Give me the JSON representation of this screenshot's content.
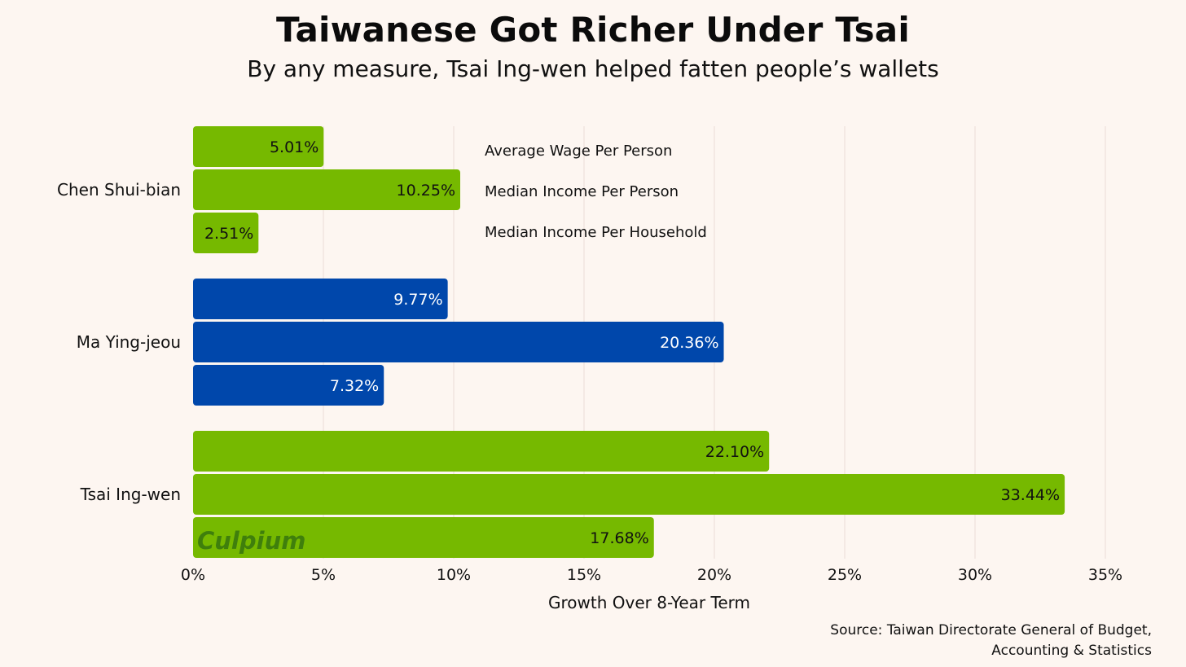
{
  "header": {
    "title": "Taiwanese Got Richer Under Tsai",
    "subtitle": "By any measure, Tsai Ing-wen helped fatten people’s wallets"
  },
  "source": {
    "line1": "Source: Taiwan Directorate General of Budget,",
    "line2": "Accounting & Statistics"
  },
  "watermark": "Culpium",
  "chart_data": {
    "type": "bar",
    "orientation": "horizontal",
    "title": "Taiwanese Got Richer Under Tsai",
    "subtitle": "By any measure, Tsai Ing-wen helped fatten people’s wallets",
    "xlabel": "Growth Over 8-Year Term",
    "ylabel": "",
    "xlim": [
      0,
      35
    ],
    "xticks": [
      0,
      5,
      10,
      15,
      20,
      25,
      30,
      35
    ],
    "xtick_labels": [
      "0%",
      "5%",
      "10%",
      "15%",
      "20%",
      "25%",
      "30%",
      "35%"
    ],
    "grid": true,
    "categories": [
      "Chen Shui-bian",
      "Ma Ying-jeou",
      "Tsai Ing-wen"
    ],
    "category_colors": [
      "#76b900",
      "#0047ab",
      "#76b900"
    ],
    "category_label_colors": [
      "#111111",
      "#ffffff",
      "#111111"
    ],
    "series": [
      {
        "name": "Average Wage Per Person",
        "values": [
          5.01,
          9.77,
          22.1
        ],
        "labels": [
          "5.01%",
          "9.77%",
          "22.10%"
        ]
      },
      {
        "name": "Median Income Per Person",
        "values": [
          10.25,
          20.36,
          33.44
        ],
        "labels": [
          "10.25%",
          "20.36%",
          "33.44%"
        ]
      },
      {
        "name": "Median Income Per Household",
        "values": [
          2.51,
          7.32,
          17.68
        ],
        "labels": [
          "2.51%",
          "7.32%",
          "17.68%"
        ]
      }
    ],
    "legend_position": "top-center (inside plot)"
  }
}
